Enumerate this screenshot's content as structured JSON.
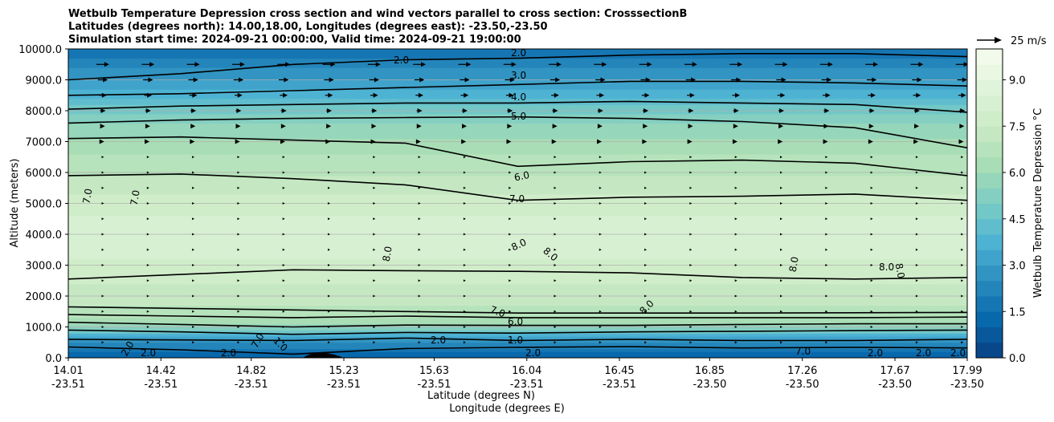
{
  "chart_data": {
    "type": "contourf",
    "title_lines": [
      "Wetbulb Temperature Depression cross section and wind vectors parallel to cross section: CrosssectionB",
      "Latitudes (degrees north): 14.00,18.00, Longitudes (degrees east): -23.50,-23.50",
      "Simulation start time: 2024-09-21 00:00:00, Valid time: 2024-09-21 19:00:00"
    ],
    "xlabel": "Latitude (degrees N)",
    "xlabel2": "Longitude (degrees E)",
    "ylabel": "Altitude (meters)",
    "xlim": [
      14.01,
      17.99
    ],
    "ylim": [
      0,
      10000
    ],
    "grid": "horizontal",
    "x_ticks": [
      {
        "lat": "14.01",
        "lon": "-23.51",
        "v": 14.01
      },
      {
        "lat": "14.42",
        "lon": "-23.51",
        "v": 14.42
      },
      {
        "lat": "14.82",
        "lon": "-23.51",
        "v": 14.82
      },
      {
        "lat": "15.23",
        "lon": "-23.51",
        "v": 15.23
      },
      {
        "lat": "15.63",
        "lon": "-23.51",
        "v": 15.63
      },
      {
        "lat": "16.04",
        "lon": "-23.51",
        "v": 16.04
      },
      {
        "lat": "16.45",
        "lon": "-23.51",
        "v": 16.45
      },
      {
        "lat": "16.85",
        "lon": "-23.50",
        "v": 16.85
      },
      {
        "lat": "17.26",
        "lon": "-23.50",
        "v": 17.26
      },
      {
        "lat": "17.67",
        "lon": "-23.50",
        "v": 17.67
      },
      {
        "lat": "17.99",
        "lon": "-23.50",
        "v": 17.99
      }
    ],
    "y_ticks": [
      "0.0",
      "1000.0",
      "2000.0",
      "3000.0",
      "4000.0",
      "5000.0",
      "6000.0",
      "7000.0",
      "8000.0",
      "9000.0",
      "10000.0"
    ],
    "y_tick_values": [
      0,
      1000,
      2000,
      3000,
      4000,
      5000,
      6000,
      7000,
      8000,
      9000,
      10000
    ],
    "colorbar": {
      "label": "Wetbulb Temperature Depression °C",
      "min": 0,
      "max": 10,
      "ticks": [
        "0.0",
        "1.5",
        "3.0",
        "4.5",
        "6.0",
        "7.5",
        "9.0"
      ],
      "tick_values": [
        0,
        1.5,
        3,
        4.5,
        6,
        7.5,
        9
      ],
      "levels": [
        0,
        0.5,
        1,
        1.5,
        2,
        2.5,
        3,
        3.5,
        4,
        4.5,
        5,
        5.5,
        6,
        6.5,
        7,
        7.5,
        8,
        8.5,
        9,
        9.5,
        10
      ]
    },
    "quiver_key": {
      "label": "25 m/s",
      "speed": 25
    },
    "profile": {
      "altitudes": [
        0,
        300,
        700,
        1000,
        1300,
        1700,
        2500,
        3500,
        4500,
        5500,
        6500,
        7500,
        8000,
        8500,
        9000,
        9500,
        10000
      ],
      "values": [
        1.0,
        1.8,
        3.5,
        5.5,
        6.6,
        7.0,
        7.6,
        8.2,
        8.1,
        7.3,
        6.6,
        5.6,
        4.8,
        3.9,
        3.0,
        2.3,
        1.6
      ]
    },
    "contour_levels": [
      {
        "value": 1.0,
        "label": "1.0",
        "heights": [
          600,
          580,
          560,
          640,
          560,
          600,
          560,
          560,
          600
        ]
      },
      {
        "value": 2.0,
        "label": "2.0",
        "heights": [
          350,
          260,
          120,
          300,
          340,
          360,
          320,
          340,
          320
        ]
      },
      {
        "value": 3.0,
        "label": "3.0",
        "heights": [
          900,
          840,
          760,
          820,
          800,
          840,
          860,
          880,
          900
        ]
      },
      {
        "value": 5.0,
        "label": "5.0",
        "heights": [
          1150,
          1080,
          1000,
          1060,
          1050,
          1050,
          1080,
          1100,
          1100
        ]
      },
      {
        "value": 6.0,
        "label": "6.0",
        "heights": [
          1400,
          1350,
          1300,
          1350,
          1300,
          1300,
          1300,
          1300,
          1320
        ]
      },
      {
        "value": 7.0,
        "label": "7.0",
        "heights": [
          1650,
          1600,
          1550,
          1500,
          1450,
          1450,
          1450,
          1460,
          1470
        ]
      },
      {
        "value": 7.5,
        "label": "",
        "heights": [
          2550,
          2700,
          2850,
          2820,
          2800,
          2750,
          2600,
          2550,
          2600
        ]
      },
      {
        "value": 7.0,
        "label": "7.0",
        "heights": [
          5900,
          5950,
          5800,
          5600,
          5100,
          5200,
          5230,
          5300,
          5100
        ]
      },
      {
        "value": 6.0,
        "label": "6.0",
        "heights": [
          7100,
          7150,
          7050,
          6950,
          6200,
          6350,
          6400,
          6300,
          5900
        ]
      },
      {
        "value": 5.0,
        "label": "5.0",
        "heights": [
          7600,
          7700,
          7750,
          7780,
          7800,
          7750,
          7650,
          7450,
          6800
        ]
      },
      {
        "value": 4.0,
        "label": "4.0",
        "heights": [
          8050,
          8150,
          8200,
          8250,
          8250,
          8300,
          8250,
          8200,
          7950
        ]
      },
      {
        "value": 3.0,
        "label": "3.0",
        "heights": [
          8500,
          8550,
          8650,
          8750,
          8850,
          8950,
          8950,
          8900,
          8800
        ]
      },
      {
        "value": 2.0,
        "label": "2.0",
        "heights": [
          9000,
          9200,
          9500,
          9650,
          9700,
          9800,
          9850,
          9850,
          9750
        ]
      }
    ],
    "inline_labels": [
      "2.0",
      "2.0",
      "3.0",
      "4.0",
      "5.0",
      "6.0",
      "7.0",
      "7.0",
      "7.0",
      "8.0",
      "8.0",
      "8.0",
      "8.0",
      "8.0",
      "8.0",
      "8.0",
      "7.0",
      "6.0",
      "1.0",
      "2.0",
      "2.0",
      "2.0",
      "7.0",
      "2.0",
      "1.0",
      "2.0",
      "7.0",
      "2.0",
      "2.0",
      "2.0"
    ],
    "wind_rows": [
      {
        "altitude": 9500,
        "speed": 18
      },
      {
        "altitude": 9000,
        "speed": 14
      },
      {
        "altitude": 8500,
        "speed": 11
      },
      {
        "altitude": 8000,
        "speed": 8
      },
      {
        "altitude": 7500,
        "speed": 6
      },
      {
        "altitude": 7000,
        "speed": 4
      },
      {
        "altitude": 6500,
        "speed": 3
      },
      {
        "altitude": 6000,
        "speed": 2
      },
      {
        "altitude": 5500,
        "speed": 1.5
      },
      {
        "altitude": 5000,
        "speed": 1.2
      },
      {
        "altitude": 4500,
        "speed": 1
      },
      {
        "altitude": 4000,
        "speed": 1
      },
      {
        "altitude": 3500,
        "speed": 1
      },
      {
        "altitude": 3000,
        "speed": 1
      },
      {
        "altitude": 2500,
        "speed": 1
      },
      {
        "altitude": 2000,
        "speed": 1
      },
      {
        "altitude": 1500,
        "speed": 1
      },
      {
        "altitude": 1000,
        "speed": 1
      },
      {
        "altitude": 500,
        "speed": 1
      }
    ],
    "terrain": {
      "lat_start": 15.05,
      "lat_peak": 15.11,
      "lat_end": 15.23,
      "peak_altitude": 200
    }
  }
}
